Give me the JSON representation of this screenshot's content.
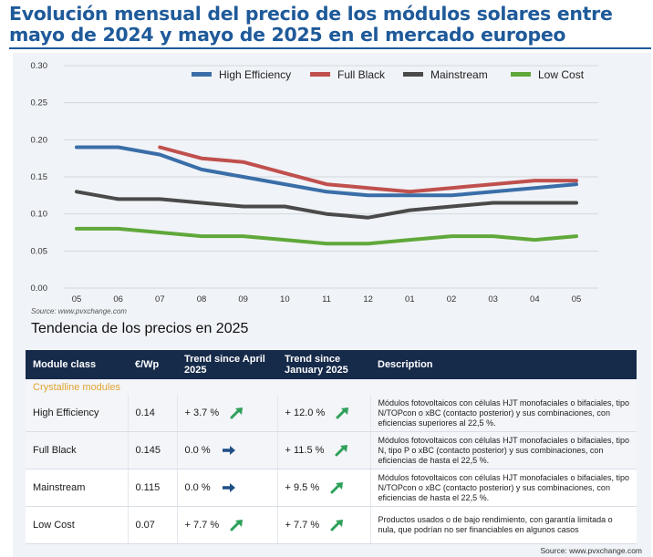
{
  "headline": "Evolución mensual del precio de los módulos solares entre mayo de 2024 y mayo de 2025 en el mercado europeo",
  "chart_data": {
    "type": "line",
    "categories": [
      "05",
      "06",
      "07",
      "08",
      "09",
      "10",
      "11",
      "12",
      "01",
      "02",
      "03",
      "04",
      "05"
    ],
    "ylim": [
      0,
      0.3
    ],
    "yticks": [
      "0.00",
      "0.05",
      "0.10",
      "0.15",
      "0.20",
      "0.25",
      "0.30"
    ],
    "grid": true,
    "legend_position": "top",
    "series": [
      {
        "name": "High Efficiency",
        "color": "#3a6ea8",
        "values": [
          0.19,
          0.19,
          0.18,
          0.16,
          0.15,
          0.14,
          0.13,
          0.125,
          0.125,
          0.125,
          0.13,
          0.135,
          0.14
        ]
      },
      {
        "name": "Full Black",
        "color": "#c0504d",
        "values": [
          null,
          null,
          0.19,
          0.175,
          0.17,
          0.155,
          0.14,
          0.135,
          0.13,
          0.135,
          0.14,
          0.145,
          0.145
        ]
      },
      {
        "name": "Mainstream",
        "color": "#4a4a4a",
        "values": [
          0.13,
          0.12,
          0.12,
          0.115,
          0.11,
          0.11,
          0.1,
          0.095,
          0.105,
          0.11,
          0.115,
          0.115,
          0.115
        ]
      },
      {
        "name": "Low Cost",
        "color": "#5fa83a",
        "values": [
          0.08,
          0.08,
          0.075,
          0.07,
          0.07,
          0.065,
          0.06,
          0.06,
          0.065,
          0.07,
          0.07,
          0.065,
          0.07
        ]
      }
    ],
    "source": "Source: www.pvxchange.com"
  },
  "table": {
    "title": "Tendencia de los precios en 2025",
    "headers": {
      "module_class": "Module class",
      "price": "€/Wp",
      "trend_april": "Trend since April 2025",
      "trend_january": "Trend since January 2025",
      "description": "Description"
    },
    "section": "Crystalline modules",
    "rows": [
      {
        "name": "High Efficiency",
        "price": "0.14",
        "apr": "+ 3.7 %",
        "apr_dir": "up",
        "jan": "+ 12.0 %",
        "jan_dir": "up",
        "desc": "Módulos fotovoltaicos con células HJT monofaciales o bifaciales, tipo N/TOPcon o xBC (contacto posterior) y sus combinaciones, con eficiencias superiores al 22,5 %."
      },
      {
        "name": "Full Black",
        "price": "0.145",
        "apr": "0.0 %",
        "apr_dir": "flat",
        "jan": "+ 11.5 %",
        "jan_dir": "up",
        "desc": "Módulos fotovoltaicos con células HJT monofaciales o bifaciales, tipo N, tipo P o xBC (contacto posterior) y sus combinaciones, con eficiencias de hasta el 22,5 %."
      },
      {
        "name": "Mainstream",
        "price": "0.115",
        "apr": "0.0 %",
        "apr_dir": "flat",
        "jan": "+ 9.5 %",
        "jan_dir": "up",
        "desc": "Módulos fotovoltaicos con células HJT monofaciales o bifaciales, tipo N/TOPcon o xBC (contacto posterior) y sus combinaciones, con eficiencias de hasta el 22,5 %."
      },
      {
        "name": "Low Cost",
        "price": "0.07",
        "apr": "+ 7.7 %",
        "apr_dir": "up",
        "jan": "+ 7.7 %",
        "jan_dir": "up",
        "desc": "Productos usados o de bajo rendimiento, con garantía limitada o nula, que podrían no ser financiables en algunos casos"
      }
    ],
    "source": "Source: www.pvxchange.com"
  },
  "colors": {
    "headline": "#1f5a9a",
    "table_header": "#162a4a",
    "section": "#e1a430",
    "arrow_up": "#2ea05a",
    "arrow_flat": "#1f4f86"
  }
}
